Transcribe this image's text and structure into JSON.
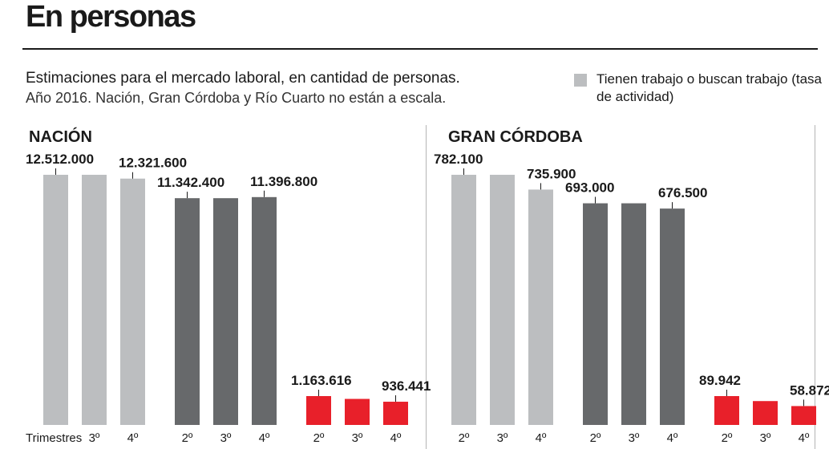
{
  "header": {
    "title": "En personas",
    "subtitle_line1": "Estimaciones para el mercado laboral, en cantidad de personas.",
    "subtitle_line2": "Año 2016. Nación, Gran Córdoba y Río Cuarto no están a escala."
  },
  "legend": {
    "label": "Tienen trabajo o buscan trabajo (tasa de actividad)",
    "color": "#bcbec0"
  },
  "colors": {
    "light": "#bcbec0",
    "dark": "#67696b",
    "red": "#e8202a"
  },
  "chart_data": [
    {
      "type": "bar",
      "title": "NACIÓN",
      "xlabel": "Trimestres",
      "groups": [
        {
          "color": "light",
          "categories": [
            "",
            "3º",
            "4º"
          ],
          "values": [
            12512000,
            12512000,
            12321600
          ],
          "labels": [
            "12.512.000",
            "",
            "12.321.600"
          ]
        },
        {
          "color": "dark",
          "categories": [
            "2º",
            "3º",
            "4º"
          ],
          "values": [
            11342400,
            11342400,
            11396800
          ],
          "labels": [
            "11.342.400",
            "",
            "11.396.800"
          ]
        },
        {
          "color": "red",
          "categories": [
            "2º",
            "3º",
            "4º"
          ],
          "values": [
            1163616,
            1050000,
            936441
          ],
          "labels": [
            "1.163.616",
            "",
            "936.441"
          ]
        }
      ]
    },
    {
      "type": "bar",
      "title": "GRAN CÓRDOBA",
      "xlabel": "",
      "groups": [
        {
          "color": "light",
          "categories": [
            "2º",
            "3º",
            "4º"
          ],
          "values": [
            782100,
            782100,
            735900
          ],
          "labels": [
            "782.100",
            "",
            "735.900"
          ]
        },
        {
          "color": "dark",
          "categories": [
            "2º",
            "3º",
            "4º"
          ],
          "values": [
            693000,
            693000,
            676500
          ],
          "labels": [
            "693.000",
            "",
            "676.500"
          ]
        },
        {
          "color": "red",
          "categories": [
            "2º",
            "3º",
            "4º"
          ],
          "values": [
            89942,
            74400,
            58872
          ],
          "labels": [
            "89.942",
            "",
            "58.872"
          ]
        }
      ]
    }
  ]
}
